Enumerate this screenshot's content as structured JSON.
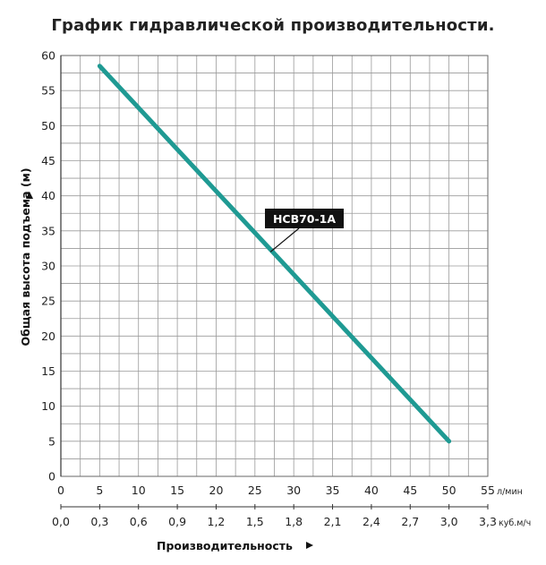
{
  "chart_data": {
    "type": "line",
    "title": "График гидравлической производительности.",
    "ylabel": "Общая высота подъема (м)",
    "xlabel": "Производительность",
    "ylim": [
      0,
      60
    ],
    "xlim": [
      0,
      55
    ],
    "y_ticks": [
      "0",
      "5",
      "10",
      "15",
      "20",
      "25",
      "30",
      "35",
      "40",
      "45",
      "50",
      "55",
      "60"
    ],
    "x_ticks_primary": [
      "0",
      "5",
      "10",
      "15",
      "20",
      "25",
      "30",
      "35",
      "40",
      "45",
      "50",
      "55"
    ],
    "x_unit_primary": "л/мин",
    "x_ticks_secondary": [
      "0,0",
      "0,3",
      "0,6",
      "0,9",
      "1,2",
      "1,5",
      "1,8",
      "2,1",
      "2,4",
      "2,7",
      "3,0",
      "3,3"
    ],
    "x_unit_secondary": "куб.м/ч",
    "grid": true,
    "series": [
      {
        "name": "HCB70-1A",
        "color": "#1f9a93",
        "x": [
          5,
          50
        ],
        "y": [
          58.5,
          5
        ]
      }
    ],
    "annotation": {
      "text": "HCB70-1A",
      "x": 27,
      "y": 32
    }
  }
}
